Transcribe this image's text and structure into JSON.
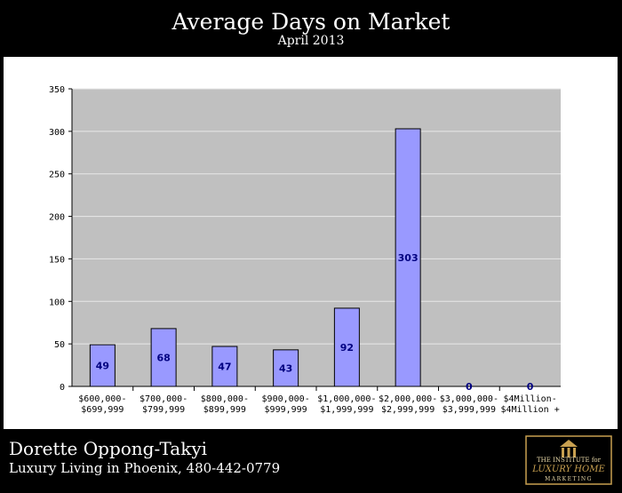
{
  "header": {
    "title": "Average Days on Market",
    "subtitle": "April 2013"
  },
  "footer": {
    "agent_name": "Dorette Oppong-Takyi",
    "tagline": "Luxury Living in Phoenix, 480-442-0779",
    "logo_text": [
      "THE INSTITUTE for",
      "LUXURY HOME",
      "MARKETING"
    ]
  },
  "colors": {
    "plot_background": "#c0c0c0",
    "bar_fill": "#9999ff",
    "bar_stroke": "#000000",
    "value_label": "#000080",
    "gridline": "#e8e8e8"
  },
  "chart_data": {
    "type": "bar",
    "title": "",
    "xlabel": "",
    "ylabel": "",
    "ylim": [
      0,
      350
    ],
    "yticks": [
      0,
      50,
      100,
      150,
      200,
      250,
      300,
      350
    ],
    "grid": true,
    "categories": [
      [
        "$600,000-",
        "$699,999"
      ],
      [
        "$700,000-",
        "$799,999"
      ],
      [
        "$800,000-",
        "$899,999"
      ],
      [
        "$900,000-",
        "$999,999"
      ],
      [
        "$1,000,000-",
        "$1,999,999"
      ],
      [
        "$2,000,000-",
        "$2,999,999"
      ],
      [
        "$3,000,000-",
        "$3,999,999"
      ],
      [
        "$4Million-",
        "$4Million +"
      ]
    ],
    "values": [
      49,
      68,
      47,
      43,
      92,
      303,
      0,
      0
    ],
    "value_labels": [
      "49",
      "68",
      "47",
      "43",
      "92",
      "303",
      "0",
      "0"
    ]
  }
}
